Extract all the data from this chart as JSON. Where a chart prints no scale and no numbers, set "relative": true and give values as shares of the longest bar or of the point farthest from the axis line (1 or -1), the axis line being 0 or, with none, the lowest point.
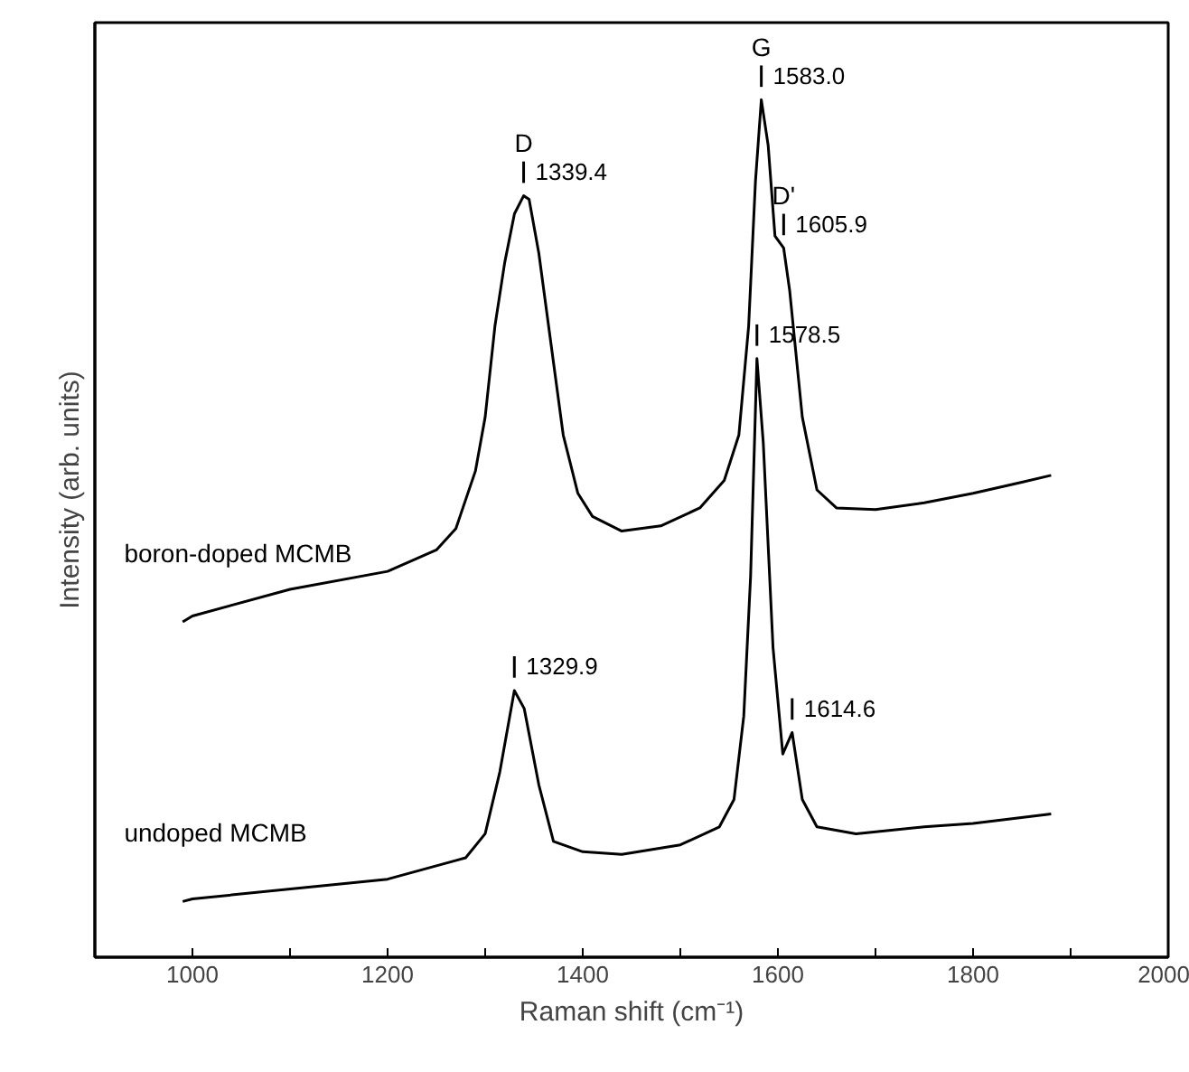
{
  "chart_data": {
    "type": "line",
    "relative": true,
    "xlabel": "Raman shift (cm⁻¹)",
    "ylabel": "Intensity (arb. units)",
    "xlim": [
      900,
      2000
    ],
    "xticks": [
      1000,
      {
        "value": 1100,
        "label": null
      },
      1200,
      {
        "value": 1300,
        "label": null
      },
      1400,
      {
        "value": 1500,
        "label": null
      },
      1600,
      {
        "value": 1700,
        "label": null
      },
      1800,
      {
        "value": 1900,
        "label": null
      },
      2000
    ],
    "legend": false,
    "grid": false,
    "line_style": "solid",
    "marker": "none",
    "series": [
      {
        "name": "boron-doped MCMB",
        "color": "#000000",
        "x": [
          990,
          1000,
          1100,
          1200,
          1250,
          1270,
          1290,
          1300,
          1310,
          1320,
          1330,
          1339.4,
          1345,
          1355,
          1365,
          1380,
          1395,
          1410,
          1440,
          1480,
          1520,
          1545,
          1560,
          1570,
          1577,
          1583.0,
          1590,
          1597,
          1605.9,
          1612,
          1625,
          1640,
          1660,
          1700,
          1750,
          1800,
          1850,
          1880
        ],
        "values": [
          0.391,
          0.398,
          0.429,
          0.45,
          0.475,
          0.5,
          0.567,
          0.63,
          0.736,
          0.81,
          0.867,
          0.888,
          0.884,
          0.821,
          0.736,
          0.609,
          0.541,
          0.514,
          0.497,
          0.503,
          0.524,
          0.556,
          0.609,
          0.736,
          0.905,
          1.0,
          0.947,
          0.841,
          0.827,
          0.778,
          0.63,
          0.545,
          0.524,
          0.522,
          0.53,
          0.541,
          0.554,
          0.562
        ]
      },
      {
        "name": "undoped MCMB",
        "color": "#000000",
        "x": [
          990,
          1000,
          1200,
          1280,
          1300,
          1315,
          1329.9,
          1340,
          1355,
          1370,
          1400,
          1440,
          1500,
          1540,
          1555,
          1565,
          1572,
          1578.5,
          1585,
          1595,
          1605,
          1614.6,
          1625,
          1640,
          1680,
          1750,
          1800,
          1880
        ],
        "values": [
          0.065,
          0.068,
          0.091,
          0.116,
          0.144,
          0.216,
          0.311,
          0.29,
          0.201,
          0.135,
          0.123,
          0.12,
          0.131,
          0.152,
          0.184,
          0.281,
          0.444,
          0.698,
          0.6,
          0.361,
          0.237,
          0.262,
          0.184,
          0.152,
          0.144,
          0.152,
          0.156,
          0.167
        ]
      }
    ],
    "annotations": [
      {
        "text": "D",
        "x": 1339.4,
        "y": 0.888
      },
      {
        "text": "1339.4",
        "x": 1339.4,
        "y": 0.888
      },
      {
        "text": "G",
        "x": 1583.0,
        "y": 1.0
      },
      {
        "text": "1583.0",
        "x": 1583.0,
        "y": 1.0
      },
      {
        "text": "D'",
        "x": 1605.9,
        "y": 0.827
      },
      {
        "text": "1605.9",
        "x": 1605.9,
        "y": 0.827
      },
      {
        "text": "1578.5",
        "x": 1578.5,
        "y": 0.698
      },
      {
        "text": "1329.9",
        "x": 1329.9,
        "y": 0.311
      },
      {
        "text": "1614.6",
        "x": 1614.6,
        "y": 0.262
      }
    ]
  }
}
